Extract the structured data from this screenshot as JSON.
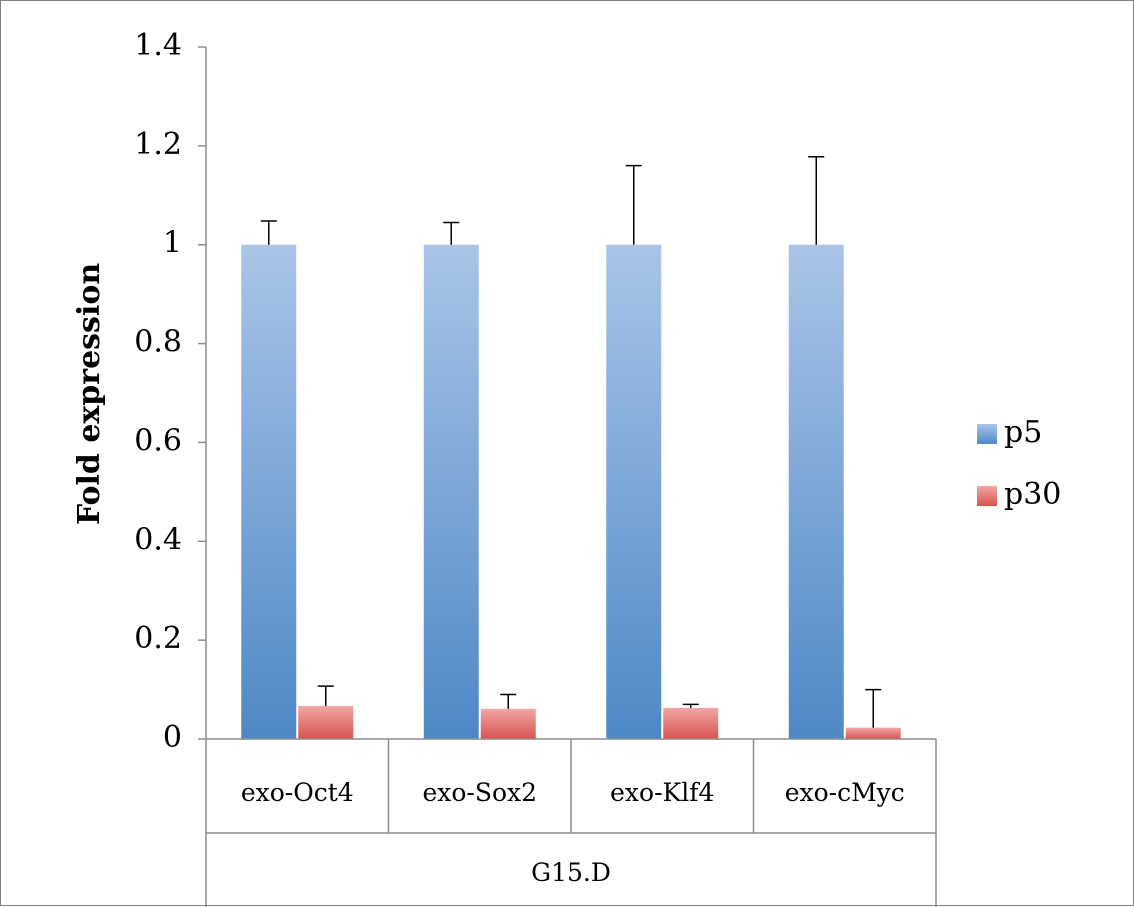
{
  "chart_data": {
    "type": "bar",
    "ylabel": "Fold expression",
    "ylim": [
      0,
      1.4
    ],
    "yticks": [
      "0",
      "0.2",
      "0.4",
      "0.6",
      "0.8",
      "1",
      "1.2",
      "1.4"
    ],
    "categories": [
      "exo-Oct4",
      "exo-Sox2",
      "exo-Klf4",
      "exo-cMyc"
    ],
    "group_label": "G15.D",
    "series": [
      {
        "name": "p5",
        "values": [
          1.0,
          1.0,
          1.0,
          1.0
        ],
        "error": [
          0.048,
          0.045,
          0.16,
          0.178
        ],
        "color_top": "#a9c5e8",
        "color_bottom": "#4f88c6"
      },
      {
        "name": "p30",
        "values": [
          0.067,
          0.061,
          0.063,
          0.023
        ],
        "error": [
          0.04,
          0.029,
          0.007,
          0.077
        ],
        "color_top": "#f0a7a5",
        "color_bottom": "#d9534f"
      }
    ],
    "legend_position": "right",
    "grid": false
  }
}
